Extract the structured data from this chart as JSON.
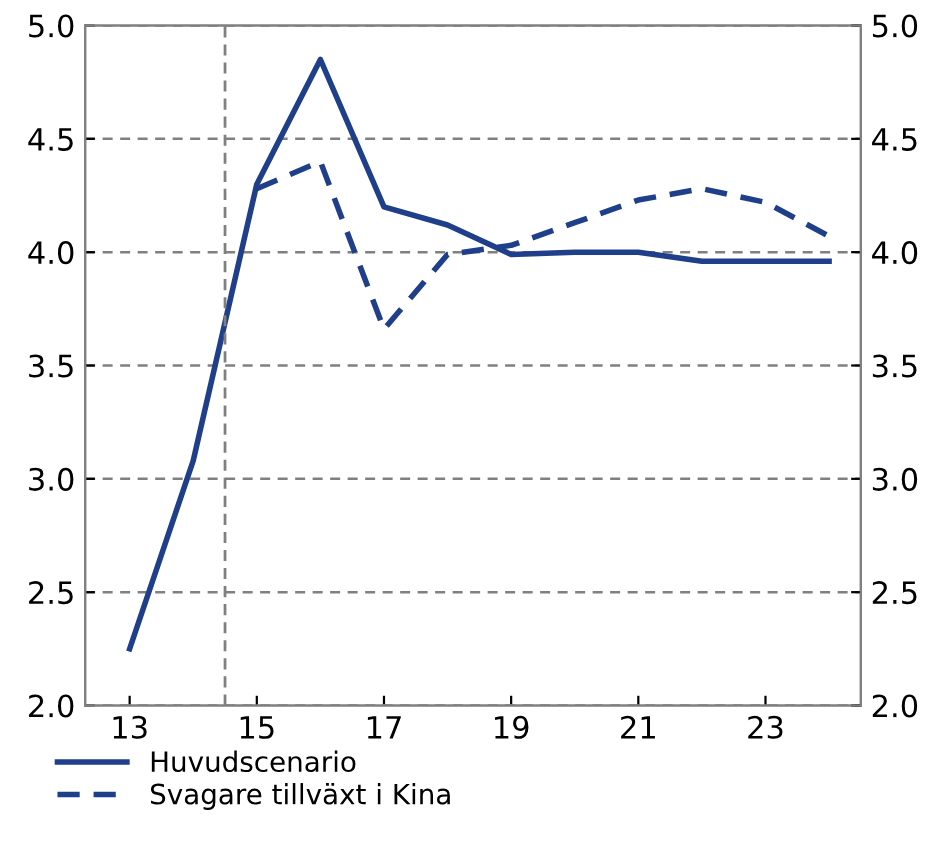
{
  "chart_data": {
    "type": "line",
    "series": [
      {
        "name": "Huvudscenario",
        "color": "#1f3f8a",
        "line_style": "solid",
        "x": [
          13,
          14,
          15,
          16,
          17,
          18,
          19,
          20,
          21,
          22,
          23,
          24
        ],
        "values": [
          2.25,
          3.08,
          4.3,
          4.85,
          4.2,
          4.12,
          3.99,
          4.0,
          4.0,
          3.96,
          3.96,
          3.96
        ]
      },
      {
        "name": "Svagare tillväxt i Kina",
        "color": "#1f3f8a",
        "line_style": "dashed",
        "x": [
          15,
          16,
          17,
          18,
          19,
          20,
          21,
          22,
          23,
          24
        ],
        "values": [
          4.28,
          4.4,
          3.66,
          3.99,
          4.03,
          4.13,
          4.23,
          4.28,
          4.22,
          4.07
        ]
      }
    ],
    "xlim": [
      12.3,
      24.5
    ],
    "xticks": [
      13,
      15,
      17,
      19,
      21,
      23
    ],
    "ylim": [
      2.0,
      5.0
    ],
    "yticks": [
      {
        "value": 2,
        "label": "2.0"
      },
      2.5,
      {
        "value": 3,
        "label": "3.0"
      },
      3.5,
      {
        "value": 4,
        "label": "4.0"
      },
      4.5,
      {
        "value": 5,
        "label": "5.0"
      }
    ],
    "y2lim": [
      2.0,
      5.0
    ],
    "y2ticks": [
      {
        "value": 2,
        "label": "2.0"
      },
      2.5,
      {
        "value": 3,
        "label": "3.0"
      },
      3.5,
      {
        "value": 4,
        "label": "4.0"
      },
      4.5,
      {
        "value": 5,
        "label": "5.0"
      }
    ],
    "ref_lines": [
      {
        "axis": "x",
        "value": 14.5,
        "color": "#808080",
        "line_style": "dashed"
      }
    ],
    "grid": "y",
    "legend": "bottom",
    "marker": "none"
  }
}
